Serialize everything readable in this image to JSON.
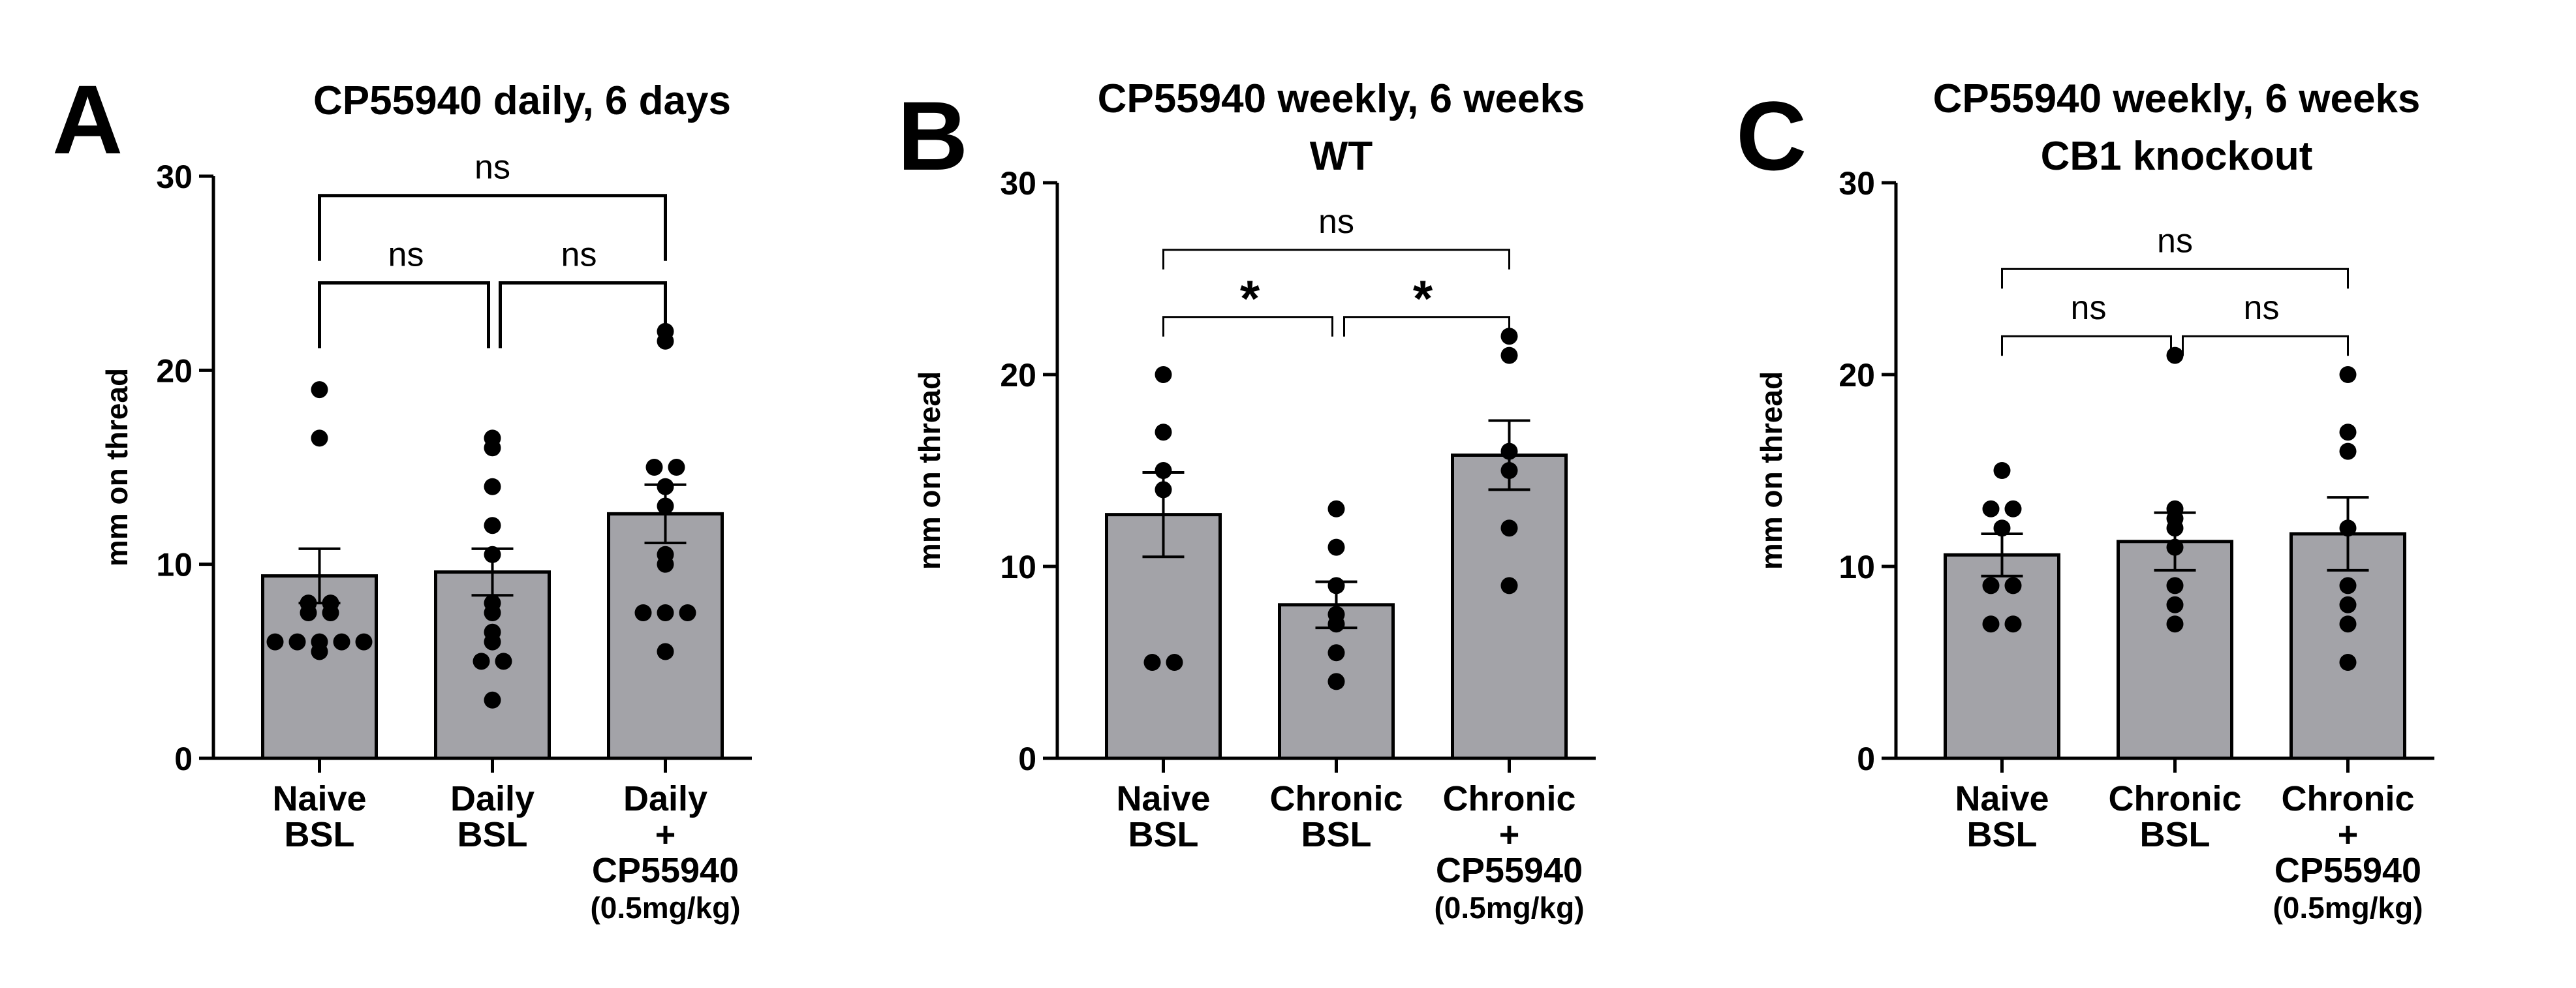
{
  "colors": {
    "bar_fill": "#a3a3a8",
    "bar_stroke": "#000000",
    "point": "#000000",
    "axis": "#000000",
    "background": "#ffffff"
  },
  "chart_data": [
    {
      "type": "bar",
      "panel_label": "A",
      "title": [
        "CP55940 daily, 6 days"
      ],
      "ylabel": "mm on thread",
      "xlabel": "",
      "ylim": [
        0,
        30
      ],
      "yticks": [
        0,
        10,
        20,
        30
      ],
      "grid": false,
      "categories": [
        [
          "Naive",
          "BSL"
        ],
        [
          "Daily",
          "BSL"
        ],
        [
          "Daily",
          "+",
          "CP55940",
          "(0.5mg/kg)"
        ]
      ],
      "values": [
        9.4,
        9.6,
        12.6
      ],
      "sem": [
        1.4,
        1.2,
        1.5
      ],
      "points": [
        [
          19,
          16.5,
          8,
          8,
          7.5,
          7.5,
          6,
          6,
          6,
          6,
          6,
          5.5
        ],
        [
          16.5,
          16,
          14,
          12,
          10.5,
          8,
          7.5,
          6.5,
          6,
          5,
          5,
          3
        ],
        [
          22,
          21.5,
          15,
          15,
          14,
          13,
          10.5,
          10,
          7.5,
          7.5,
          7.5,
          5.5
        ]
      ],
      "comparisons": [
        {
          "groups": [
            0,
            1
          ],
          "label": "ns",
          "y": 24.5
        },
        {
          "groups": [
            1,
            2
          ],
          "label": "ns",
          "y": 24.5
        },
        {
          "groups": [
            0,
            2
          ],
          "label": "ns",
          "y": 29
        }
      ]
    },
    {
      "type": "bar",
      "panel_label": "B",
      "title": [
        "CP55940 weekly, 6 weeks",
        "WT"
      ],
      "ylabel": "mm on thread",
      "xlabel": "",
      "ylim": [
        0,
        30
      ],
      "yticks": [
        0,
        10,
        20,
        30
      ],
      "grid": false,
      "categories": [
        [
          "Naive",
          "BSL"
        ],
        [
          "Chronic",
          "BSL"
        ],
        [
          "Chronic",
          "+",
          "CP55940",
          "(0.5mg/kg)"
        ]
      ],
      "values": [
        12.7,
        8.0,
        15.8
      ],
      "sem": [
        2.2,
        1.2,
        1.8
      ],
      "points": [
        [
          20,
          17,
          15,
          14,
          5,
          5
        ],
        [
          13,
          11,
          9,
          7.5,
          7,
          5.5,
          4
        ],
        [
          22,
          21,
          16,
          15,
          12,
          9
        ]
      ],
      "comparisons": [
        {
          "groups": [
            0,
            1
          ],
          "label": "*",
          "y": 23
        },
        {
          "groups": [
            1,
            2
          ],
          "label": "*",
          "y": 23
        },
        {
          "groups": [
            0,
            2
          ],
          "label": "ns",
          "y": 26.5
        }
      ]
    },
    {
      "type": "bar",
      "panel_label": "C",
      "title": [
        "CP55940 weekly, 6 weeks",
        "CB1 knockout"
      ],
      "ylabel": "mm on thread",
      "xlabel": "",
      "ylim": [
        0,
        30
      ],
      "yticks": [
        0,
        10,
        20,
        30
      ],
      "grid": false,
      "categories": [
        [
          "Naive",
          "BSL"
        ],
        [
          "Chronic",
          "BSL"
        ],
        [
          "Chronic",
          "+",
          "CP55940",
          "(0.5mg/kg)"
        ]
      ],
      "values": [
        10.6,
        11.3,
        11.7
      ],
      "sem": [
        1.1,
        1.5,
        1.9
      ],
      "points": [
        [
          15,
          13,
          13,
          12,
          9,
          9,
          7,
          7
        ],
        [
          21,
          13,
          12.5,
          12,
          11,
          9,
          8,
          7
        ],
        [
          20,
          17,
          16,
          12,
          9,
          8,
          7,
          5
        ]
      ],
      "comparisons": [
        {
          "groups": [
            0,
            1
          ],
          "label": "ns",
          "y": 22
        },
        {
          "groups": [
            1,
            2
          ],
          "label": "ns",
          "y": 22
        },
        {
          "groups": [
            0,
            2
          ],
          "label": "ns",
          "y": 25.5
        }
      ]
    }
  ]
}
